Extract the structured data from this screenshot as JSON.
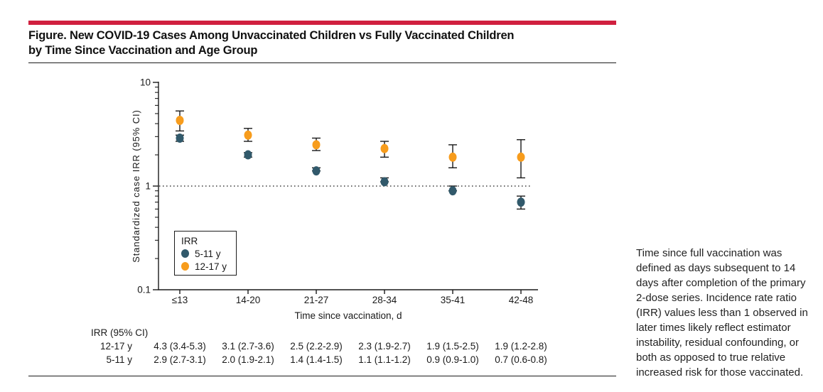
{
  "header": {
    "title_line1": "Figure. New COVID-19 Cases Among Unvaccinated Children vs Fully Vaccinated Children",
    "title_line2": "by Time Since Vaccination and Age Group",
    "accent_color": "#D0203F"
  },
  "chart_data": {
    "type": "scatter",
    "title": "New COVID-19 cases among unvaccinated vs fully vaccinated children, standardized case IRR by time since vaccination and age group",
    "categories": [
      "≤13",
      "14-20",
      "21-27",
      "28-34",
      "35-41",
      "42-48"
    ],
    "xlabel": "Time since vaccination, d",
    "ylabel": "Standardized case IRR (95% CI)",
    "yscale": "log",
    "ylim": [
      0.1,
      10
    ],
    "ytick_labels": [
      "10",
      "1",
      "0.1"
    ],
    "yticks": [
      10,
      1,
      0.1
    ],
    "grid": false,
    "reference_line": 1,
    "legend": {
      "title": "IRR",
      "position": "inside-bottom-left"
    },
    "series": [
      {
        "name": "5-11 y",
        "color": "#31596B",
        "values": [
          2.9,
          2.0,
          1.4,
          1.1,
          0.9,
          0.7
        ],
        "ci_low": [
          2.7,
          1.9,
          1.4,
          1.1,
          0.9,
          0.6
        ],
        "ci_high": [
          3.1,
          2.1,
          1.5,
          1.2,
          1.0,
          0.8
        ]
      },
      {
        "name": "12-17 y",
        "color": "#F79C1C",
        "values": [
          4.3,
          3.1,
          2.5,
          2.3,
          1.9,
          1.9
        ],
        "ci_low": [
          3.4,
          2.7,
          2.2,
          1.9,
          1.5,
          1.2
        ],
        "ci_high": [
          5.3,
          3.6,
          2.9,
          2.7,
          2.5,
          2.8
        ]
      }
    ]
  },
  "table": {
    "header": "IRR (95% CI)",
    "rows": [
      {
        "label": "12-17 y",
        "values": [
          "4.3 (3.4-5.3)",
          "3.1 (2.7-3.6)",
          "2.5 (2.2-2.9)",
          "2.3 (1.9-2.7)",
          "1.9 (1.5-2.5)",
          "1.9 (1.2-2.8)"
        ]
      },
      {
        "label": "5-11 y",
        "values": [
          "2.9 (2.7-3.1)",
          "2.0 (1.9-2.1)",
          "1.4 (1.4-1.5)",
          "1.1 (1.1-1.2)",
          "0.9 (0.9-1.0)",
          "0.7 (0.6-0.8)"
        ]
      }
    ]
  },
  "caption": {
    "lines": [
      "Time since full vaccination was",
      "defined as days subsequent to 14",
      "days after completion of the primary",
      "2-dose series. Incidence rate ratio",
      "(IRR) values less than 1 observed in",
      "later times likely reflect estimator",
      "instability, residual confounding, or",
      "both as opposed to true relative",
      "increased risk for those vaccinated."
    ]
  }
}
